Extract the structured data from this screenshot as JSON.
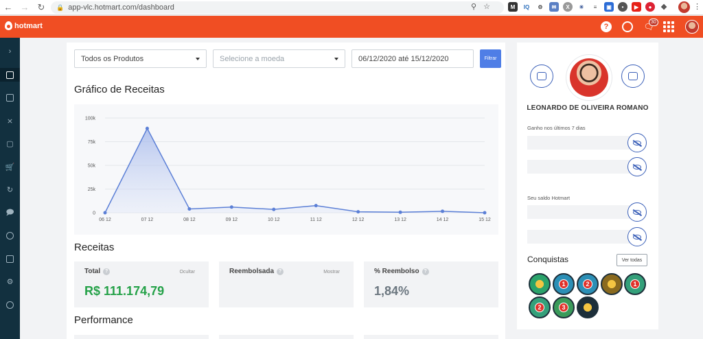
{
  "browser": {
    "url": "app-vlc.hotmart.com/dashboard",
    "back_icon": "arrow-left-icon",
    "forward_icon": "arrow-right-icon",
    "reload_icon": "reload-icon"
  },
  "header": {
    "brand": "hotmart",
    "notification_count": "30",
    "accent_color": "#f04e23"
  },
  "sidebar": {
    "items": [
      {
        "icon": "chevron-right-icon"
      },
      {
        "icon": "dashboard-icon",
        "active": true
      },
      {
        "icon": "grid-icon"
      },
      {
        "icon": "network-icon"
      },
      {
        "icon": "box-icon"
      },
      {
        "icon": "cart-icon"
      },
      {
        "icon": "refresh-icon"
      },
      {
        "icon": "chat-icon"
      },
      {
        "icon": "dollar-icon"
      },
      {
        "icon": "chart-icon"
      },
      {
        "icon": "gear-icon"
      },
      {
        "icon": "speed-icon"
      }
    ]
  },
  "filters": {
    "product": "Todos os Produtos",
    "currency_placeholder": "Selecione a moeda",
    "date_range": "06/12/2020 até 15/12/2020",
    "submit_label": "Filtrar"
  },
  "revenue_chart": {
    "title": "Gráfico de Receitas"
  },
  "chart_data": {
    "type": "area",
    "title": "Gráfico de Receitas",
    "categories": [
      "06 12",
      "07 12",
      "08 12",
      "09 12",
      "10 12",
      "11 12",
      "12 12",
      "13 12",
      "14 12",
      "15 12"
    ],
    "values": [
      0,
      89000,
      4000,
      6000,
      3500,
      7500,
      1000,
      500,
      1500,
      0
    ],
    "y_ticks": [
      "0",
      "25k",
      "50k",
      "75k",
      "100k"
    ],
    "ylim": [
      0,
      100000
    ],
    "grid": true,
    "line_color": "#5b7fd6"
  },
  "receitas": {
    "title": "Receitas",
    "total_label": "Total",
    "total_action": "Ocultar",
    "total_value": "R$ 111.174,79",
    "refunded_label": "Reembolsada",
    "refunded_action": "Mostrar",
    "refund_pct_label": "% Reembolso",
    "refund_pct_value": "1,84%"
  },
  "performance": {
    "title": "Performance"
  },
  "profile": {
    "name": "LEONARDO DE OLIVEIRA ROMANO",
    "earnings_label": "Ganho nos últimos 7 dias",
    "balance_label": "Seu saldo Hotmart",
    "achievements_title": "Conquistas",
    "see_all_label": "Ver todas",
    "medals": [
      {
        "badge": ""
      },
      {
        "badge": "1"
      },
      {
        "badge": "2"
      },
      {
        "badge": ""
      },
      {
        "badge": "1"
      },
      {
        "badge": "2"
      },
      {
        "badge": "3"
      },
      {
        "badge": ""
      }
    ]
  }
}
